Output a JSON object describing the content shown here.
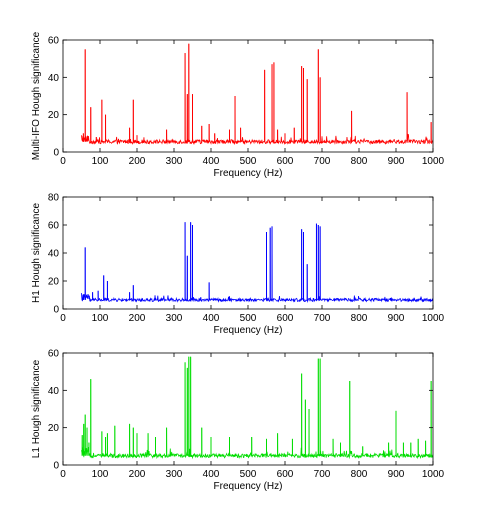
{
  "chart_data": [
    {
      "type": "line",
      "ylabel": "Multi-IFO Hough significance",
      "xlabel": "Frequency (Hz)",
      "xlim": [
        0,
        1000
      ],
      "ylim": [
        0,
        60
      ],
      "xticks": [
        0,
        100,
        200,
        300,
        400,
        500,
        600,
        700,
        800,
        900,
        1000
      ],
      "yticks": [
        0,
        20,
        40,
        60
      ],
      "grid": false,
      "color": "#ff0000",
      "baseline": {
        "x_start": 50,
        "x_end": 1000,
        "level": 5.5
      },
      "series": [
        {
          "peaks": [
            [
              55,
              10
            ],
            [
              60,
              55
            ],
            [
              65,
              8
            ],
            [
              75,
              24
            ],
            [
              90,
              8
            ],
            [
              105,
              28
            ],
            [
              115,
              20
            ],
            [
              150,
              7
            ],
            [
              180,
              13
            ],
            [
              190,
              28
            ],
            [
              200,
              9
            ],
            [
              220,
              6
            ],
            [
              280,
              12
            ],
            [
              330,
              53
            ],
            [
              336,
              31
            ],
            [
              340,
              58
            ],
            [
              350,
              31
            ],
            [
              375,
              14
            ],
            [
              395,
              15
            ],
            [
              410,
              10
            ],
            [
              450,
              12
            ],
            [
              465,
              30
            ],
            [
              480,
              13
            ],
            [
              545,
              44
            ],
            [
              565,
              47
            ],
            [
              570,
              48
            ],
            [
              580,
              12
            ],
            [
              600,
              10
            ],
            [
              625,
              13
            ],
            [
              645,
              46
            ],
            [
              650,
              45
            ],
            [
              660,
              39
            ],
            [
              690,
              55
            ],
            [
              695,
              40
            ],
            [
              780,
              22
            ],
            [
              930,
              32
            ],
            [
              995,
              16
            ]
          ]
        }
      ]
    },
    {
      "type": "line",
      "ylabel": "H1 Hough significance",
      "xlabel": "Frequency (Hz)",
      "xlim": [
        0,
        1000
      ],
      "ylim": [
        0,
        80
      ],
      "xticks": [
        0,
        100,
        200,
        300,
        400,
        500,
        600,
        700,
        800,
        900,
        1000
      ],
      "yticks": [
        0,
        20,
        40,
        60,
        80
      ],
      "grid": false,
      "color": "#0000ff",
      "baseline": {
        "x_start": 50,
        "x_end": 1000,
        "level": 6.5
      },
      "series": [
        {
          "peaks": [
            [
              55,
              10
            ],
            [
              60,
              44
            ],
            [
              80,
              12
            ],
            [
              95,
              13
            ],
            [
              110,
              24
            ],
            [
              120,
              20
            ],
            [
              180,
              12
            ],
            [
              190,
              17
            ],
            [
              330,
              62
            ],
            [
              336,
              38
            ],
            [
              345,
              62
            ],
            [
              350,
              60
            ],
            [
              395,
              19
            ],
            [
              550,
              55
            ],
            [
              560,
              58
            ],
            [
              565,
              59
            ],
            [
              645,
              57
            ],
            [
              650,
              55
            ],
            [
              660,
              32
            ],
            [
              685,
              61
            ],
            [
              690,
              60
            ],
            [
              695,
              59
            ]
          ]
        }
      ]
    },
    {
      "type": "line",
      "ylabel": "L1 Hough significance",
      "xlabel": "Frequency (Hz)",
      "xlim": [
        0,
        1000
      ],
      "ylim": [
        0,
        60
      ],
      "xticks": [
        0,
        100,
        200,
        300,
        400,
        500,
        600,
        700,
        800,
        900,
        1000
      ],
      "yticks": [
        0,
        20,
        40,
        60
      ],
      "grid": false,
      "color": "#00dd00",
      "baseline": {
        "x_start": 50,
        "x_end": 1000,
        "level": 5
      },
      "series": [
        {
          "peaks": [
            [
              52,
              16
            ],
            [
              56,
              22
            ],
            [
              60,
              27
            ],
            [
              65,
              20
            ],
            [
              70,
              12
            ],
            [
              75,
              46
            ],
            [
              105,
              18
            ],
            [
              115,
              15
            ],
            [
              120,
              17
            ],
            [
              140,
              21
            ],
            [
              180,
              22
            ],
            [
              190,
              20
            ],
            [
              200,
              17
            ],
            [
              230,
              17
            ],
            [
              250,
              15
            ],
            [
              280,
              20
            ],
            [
              330,
              55
            ],
            [
              336,
              52
            ],
            [
              340,
              58
            ],
            [
              345,
              58
            ],
            [
              375,
              20
            ],
            [
              400,
              15
            ],
            [
              450,
              15
            ],
            [
              510,
              15
            ],
            [
              550,
              14
            ],
            [
              580,
              17
            ],
            [
              620,
              14
            ],
            [
              645,
              49
            ],
            [
              655,
              35
            ],
            [
              665,
              30
            ],
            [
              690,
              57
            ],
            [
              695,
              57
            ],
            [
              730,
              14
            ],
            [
              750,
              12
            ],
            [
              775,
              45
            ],
            [
              810,
              10
            ],
            [
              880,
              12
            ],
            [
              900,
              29
            ],
            [
              920,
              12
            ],
            [
              940,
              12
            ],
            [
              960,
              14
            ],
            [
              980,
              13
            ],
            [
              995,
              45
            ]
          ]
        }
      ]
    }
  ]
}
